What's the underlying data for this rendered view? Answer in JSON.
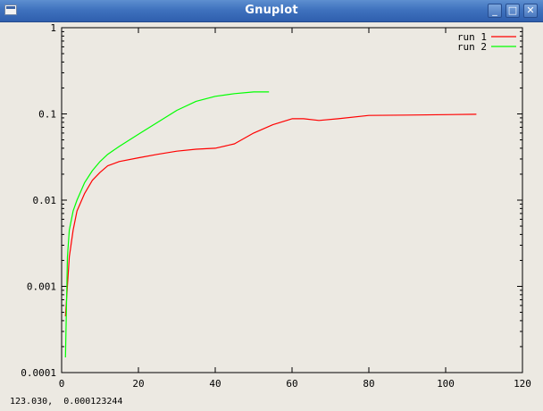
{
  "window": {
    "title": "Gnuplot",
    "minimize_label": "_",
    "maximize_label": "□",
    "close_label": "✕"
  },
  "status_bar": {
    "coordinates": "123.030,  0.000123244"
  },
  "chart_data": {
    "type": "line",
    "title": "",
    "xlabel": "",
    "ylabel": "",
    "xlim": [
      0,
      120
    ],
    "ylim": [
      0.0001,
      1
    ],
    "yscale": "log",
    "grid": false,
    "legend_position": "top-right",
    "x_ticks": [
      "0",
      "20",
      "40",
      "60",
      "80",
      "100",
      "120"
    ],
    "y_ticks": [
      "0.0001",
      "0.001",
      "0.01",
      "0.1",
      "1"
    ],
    "y_tick_values": [
      0.0001,
      0.001,
      0.01,
      0.1,
      1
    ],
    "x_tick_values": [
      0,
      20,
      40,
      60,
      80,
      100,
      120
    ],
    "series": [
      {
        "name": "run 1",
        "color": "#ff0000",
        "points": [
          [
            1,
            0.00045
          ],
          [
            2,
            0.0022
          ],
          [
            3,
            0.0045
          ],
          [
            4,
            0.0075
          ],
          [
            6,
            0.012
          ],
          [
            8,
            0.017
          ],
          [
            10,
            0.021
          ],
          [
            12,
            0.025
          ],
          [
            15,
            0.028
          ],
          [
            20,
            0.031
          ],
          [
            25,
            0.034
          ],
          [
            30,
            0.037
          ],
          [
            35,
            0.039
          ],
          [
            40,
            0.04
          ],
          [
            45,
            0.045
          ],
          [
            50,
            0.06
          ],
          [
            55,
            0.075
          ],
          [
            60,
            0.088
          ],
          [
            63,
            0.088
          ],
          [
            67,
            0.084
          ],
          [
            72,
            0.088
          ],
          [
            80,
            0.096
          ],
          [
            90,
            0.097
          ],
          [
            100,
            0.098
          ],
          [
            108,
            0.099
          ]
        ]
      },
      {
        "name": "run 2",
        "color": "#00ff00",
        "points": [
          [
            1,
            0.00015
          ],
          [
            1.5,
            0.0022
          ],
          [
            2,
            0.0045
          ],
          [
            3,
            0.0075
          ],
          [
            4,
            0.01
          ],
          [
            6,
            0.016
          ],
          [
            8,
            0.022
          ],
          [
            10,
            0.028
          ],
          [
            12,
            0.034
          ],
          [
            15,
            0.042
          ],
          [
            20,
            0.058
          ],
          [
            25,
            0.08
          ],
          [
            30,
            0.11
          ],
          [
            35,
            0.14
          ],
          [
            40,
            0.16
          ],
          [
            45,
            0.172
          ],
          [
            50,
            0.18
          ],
          [
            54,
            0.18
          ]
        ]
      }
    ]
  }
}
